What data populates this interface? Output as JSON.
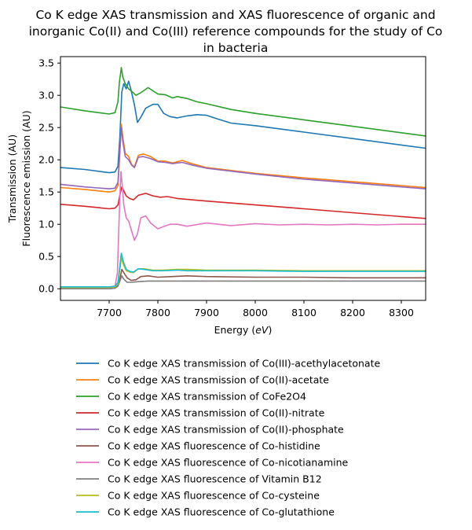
{
  "chart_data": {
    "type": "line",
    "title_lines": [
      "Co K edge XAS transmission and XAS fluorescence of organic and",
      "inorganic Co(II) and Co(III) reference compounds for the study of Co",
      "in bacteria"
    ],
    "xlabel": "Energy (eV)",
    "ylabel_lines": [
      "Transmission (AU)",
      "Fluorescence emission (AU)"
    ],
    "xlim": [
      7600,
      8350
    ],
    "ylim": [
      -0.18,
      3.6
    ],
    "xticks": [
      7700,
      7800,
      7900,
      8000,
      8100,
      8200,
      8300
    ],
    "yticks": [
      0.0,
      0.5,
      1.0,
      1.5,
      2.0,
      2.5,
      3.0,
      3.5
    ],
    "legend_position": "below plot",
    "series": [
      {
        "name": "Co K edge XAS transmission of Co(III)-acethylacetonate",
        "color": "#1f77b4",
        "x": [
          7600,
          7650,
          7700,
          7712,
          7718,
          7722,
          7726,
          7730,
          7735,
          7740,
          7745,
          7752,
          7758,
          7765,
          7775,
          7790,
          7800,
          7812,
          7825,
          7840,
          7860,
          7880,
          7900,
          7920,
          7950,
          8000,
          8100,
          8200,
          8300,
          8350
        ],
        "y": [
          1.88,
          1.85,
          1.8,
          1.81,
          1.9,
          2.35,
          3.05,
          3.18,
          3.1,
          3.22,
          3.08,
          2.85,
          2.58,
          2.66,
          2.8,
          2.86,
          2.86,
          2.72,
          2.67,
          2.65,
          2.68,
          2.7,
          2.69,
          2.64,
          2.57,
          2.53,
          2.43,
          2.33,
          2.23,
          2.18
        ]
      },
      {
        "name": "Co K edge XAS transmission of Co(II)-acetate",
        "color": "#ff7f0e",
        "x": [
          7600,
          7650,
          7700,
          7712,
          7718,
          7722,
          7725,
          7728,
          7733,
          7740,
          7746,
          7752,
          7760,
          7770,
          7785,
          7800,
          7815,
          7830,
          7850,
          7870,
          7900,
          8000,
          8100,
          8200,
          8300,
          8350
        ],
        "y": [
          1.57,
          1.54,
          1.5,
          1.52,
          1.6,
          2.1,
          2.55,
          2.35,
          2.1,
          2.05,
          1.93,
          1.89,
          2.07,
          2.09,
          2.05,
          1.98,
          1.98,
          1.95,
          1.99,
          1.94,
          1.88,
          1.79,
          1.72,
          1.66,
          1.6,
          1.57
        ]
      },
      {
        "name": "Co K edge XAS transmission of CoFe2O4",
        "color": "#2ca02c",
        "x": [
          7600,
          7650,
          7700,
          7712,
          7718,
          7721,
          7725,
          7728,
          7733,
          7740,
          7748,
          7755,
          7765,
          7780,
          7790,
          7800,
          7815,
          7830,
          7840,
          7860,
          7880,
          7900,
          7950,
          8000,
          8100,
          8200,
          8300,
          8350
        ],
        "y": [
          2.82,
          2.76,
          2.71,
          2.73,
          2.9,
          3.2,
          3.43,
          3.28,
          3.18,
          3.1,
          3.05,
          3.0,
          3.04,
          3.12,
          3.07,
          3.02,
          3.01,
          2.96,
          2.98,
          2.95,
          2.9,
          2.87,
          2.78,
          2.72,
          2.62,
          2.52,
          2.42,
          2.37
        ]
      },
      {
        "name": "Co K edge XAS transmission of Co(II)-nitrate",
        "color": "#d62728",
        "x": [
          7600,
          7650,
          7700,
          7712,
          7718,
          7722,
          7726,
          7730,
          7735,
          7742,
          7750,
          7760,
          7775,
          7790,
          7805,
          7820,
          7840,
          7870,
          7900,
          8000,
          8100,
          8200,
          8300,
          8350
        ],
        "y": [
          1.31,
          1.28,
          1.24,
          1.25,
          1.3,
          1.45,
          1.58,
          1.52,
          1.44,
          1.4,
          1.38,
          1.45,
          1.48,
          1.44,
          1.42,
          1.43,
          1.4,
          1.38,
          1.36,
          1.3,
          1.24,
          1.18,
          1.12,
          1.09
        ]
      },
      {
        "name": "Co K edge XAS transmission of Co(II)-phosphate",
        "color": "#9467bd",
        "x": [
          7600,
          7650,
          7700,
          7712,
          7718,
          7722,
          7725,
          7728,
          7733,
          7740,
          7746,
          7752,
          7760,
          7770,
          7785,
          7800,
          7815,
          7830,
          7850,
          7870,
          7900,
          8000,
          8100,
          8200,
          8300,
          8350
        ],
        "y": [
          1.62,
          1.58,
          1.55,
          1.56,
          1.65,
          2.15,
          2.5,
          2.28,
          2.05,
          2.0,
          1.92,
          1.88,
          2.04,
          2.05,
          2.02,
          1.97,
          1.96,
          1.94,
          1.96,
          1.92,
          1.87,
          1.78,
          1.7,
          1.64,
          1.58,
          1.55
        ]
      },
      {
        "name": "Co K edge XAS fluorescence of Co-histidine",
        "color": "#8c564b",
        "x": [
          7600,
          7700,
          7712,
          7718,
          7722,
          7726,
          7730,
          7737,
          7745,
          7755,
          7765,
          7780,
          7800,
          7830,
          7860,
          7900,
          8000,
          8100,
          8200,
          8300,
          8350
        ],
        "y": [
          0.0,
          0.0,
          0.01,
          0.05,
          0.15,
          0.3,
          0.25,
          0.17,
          0.13,
          0.14,
          0.19,
          0.2,
          0.18,
          0.19,
          0.2,
          0.19,
          0.18,
          0.18,
          0.17,
          0.17,
          0.17
        ]
      },
      {
        "name": "Co K edge XAS fluorescence of Co-nicotianamine",
        "color": "#e377c2",
        "x": [
          7600,
          7700,
          7712,
          7717,
          7721,
          7724,
          7727,
          7730,
          7735,
          7740,
          7746,
          7752,
          7758,
          7765,
          7775,
          7785,
          7800,
          7810,
          7825,
          7840,
          7860,
          7900,
          7950,
          8000,
          8050,
          8100,
          8150,
          8200,
          8250,
          8300,
          8350
        ],
        "y": [
          0.0,
          0.0,
          0.03,
          0.25,
          1.2,
          1.82,
          1.6,
          1.3,
          1.1,
          1.05,
          0.9,
          0.75,
          0.85,
          1.1,
          1.13,
          1.02,
          0.93,
          0.96,
          1.0,
          1.0,
          0.97,
          1.02,
          0.98,
          1.01,
          0.99,
          1.0,
          0.99,
          1.0,
          0.99,
          1.0,
          1.0
        ]
      },
      {
        "name": "Co K edge XAS fluorescence of Vitamin B12",
        "color": "#7f7f7f",
        "x": [
          7600,
          7700,
          7712,
          7718,
          7722,
          7726,
          7730,
          7737,
          7745,
          7760,
          7780,
          7800,
          7850,
          7900,
          8000,
          8100,
          8200,
          8300,
          8350
        ],
        "y": [
          0.0,
          0.0,
          0.01,
          0.04,
          0.12,
          0.2,
          0.15,
          0.1,
          0.1,
          0.11,
          0.12,
          0.12,
          0.12,
          0.12,
          0.12,
          0.12,
          0.12,
          0.12,
          0.12
        ]
      },
      {
        "name": "Co K edge XAS fluorescence of Co-cysteine",
        "color": "#bcbd22",
        "x": [
          7600,
          7700,
          7712,
          7718,
          7722,
          7725,
          7729,
          7735,
          7742,
          7750,
          7760,
          7772,
          7790,
          7810,
          7840,
          7860,
          7900,
          8000,
          8100,
          8200,
          8300,
          8350
        ],
        "y": [
          0.02,
          0.02,
          0.03,
          0.08,
          0.3,
          0.48,
          0.38,
          0.28,
          0.26,
          0.25,
          0.31,
          0.31,
          0.29,
          0.29,
          0.3,
          0.3,
          0.29,
          0.29,
          0.28,
          0.28,
          0.28,
          0.28
        ]
      },
      {
        "name": "Co K edge XAS fluorescence of Co-glutathione",
        "color": "#17becf",
        "x": [
          7600,
          7700,
          7712,
          7718,
          7722,
          7725,
          7729,
          7735,
          7742,
          7750,
          7760,
          7772,
          7790,
          7810,
          7840,
          7860,
          7900,
          8000,
          8100,
          8200,
          8300,
          8350
        ],
        "y": [
          0.03,
          0.03,
          0.04,
          0.1,
          0.35,
          0.55,
          0.42,
          0.3,
          0.27,
          0.26,
          0.31,
          0.3,
          0.28,
          0.28,
          0.29,
          0.28,
          0.28,
          0.28,
          0.27,
          0.27,
          0.27,
          0.27
        ]
      }
    ]
  }
}
